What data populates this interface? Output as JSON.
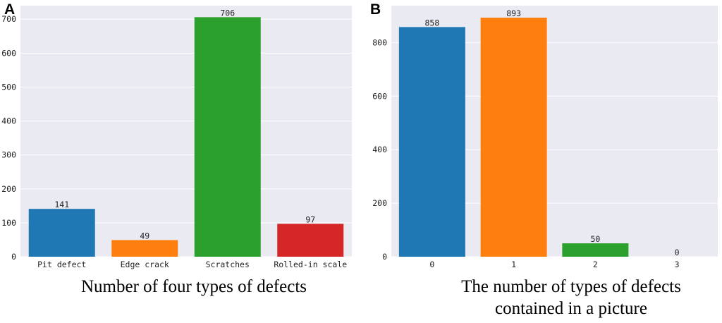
{
  "panels": [
    {
      "letter": "A",
      "caption": "Number of four types of defects",
      "caption_lines": [
        "Number of four types of defects"
      ]
    },
    {
      "letter": "B",
      "caption": "The number of types of defects contained in a picture",
      "caption_lines": [
        "The number of types of defects",
        "contained in a picture"
      ]
    }
  ],
  "colors": {
    "blue": "#1f77b4",
    "orange": "#ff7f0e",
    "green": "#2ca02c",
    "red": "#d62728",
    "plot_bg": "#eaeaf2",
    "grid": "#ffffff"
  },
  "chart_data": [
    {
      "type": "bar",
      "title": "Number of four types of defects",
      "categories": [
        "Pit defect",
        "Edge crack",
        "Scratches",
        "Rolled-in scale"
      ],
      "values": [
        141,
        49,
        706,
        97
      ],
      "data_labels": [
        "141",
        "49",
        "706",
        "97"
      ],
      "colors": [
        "#1f77b4",
        "#ff7f0e",
        "#2ca02c",
        "#d62728"
      ],
      "ylim": [
        0,
        740
      ],
      "yticks": [
        0,
        100,
        200,
        300,
        400,
        500,
        600,
        700
      ],
      "xlabel": "",
      "ylabel": "",
      "grid": true
    },
    {
      "type": "bar",
      "title": "The number of types of defects contained in a picture",
      "categories": [
        "0",
        "1",
        "2",
        "3"
      ],
      "values": [
        858,
        893,
        50,
        0
      ],
      "data_labels": [
        "858",
        "893",
        "50",
        "0"
      ],
      "colors": [
        "#1f77b4",
        "#ff7f0e",
        "#2ca02c",
        "#d62728"
      ],
      "ylim": [
        0,
        938
      ],
      "yticks": [
        0,
        200,
        400,
        600,
        800
      ],
      "xlabel": "",
      "ylabel": "",
      "grid": true
    }
  ]
}
